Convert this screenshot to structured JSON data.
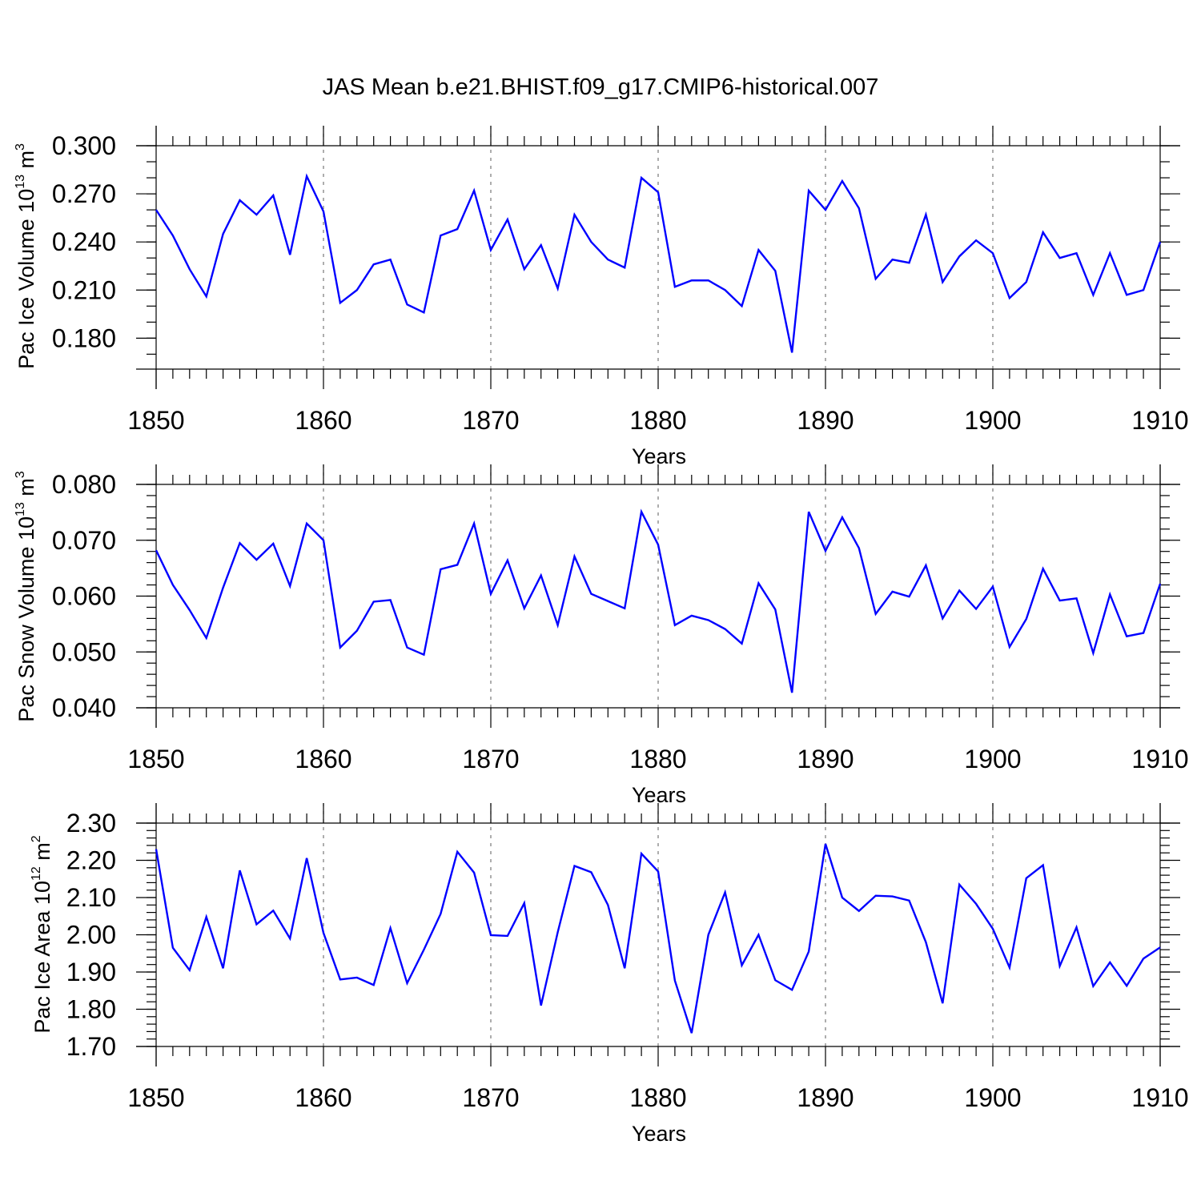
{
  "title": "JAS Mean b.e21.BHIST.f09_g17.CMIP6-historical.007",
  "chart_data": [
    {
      "type": "line",
      "name": "ice-volume",
      "ylabel_main": "Pac Ice Volume 10",
      "ylabel_exp": "13",
      "ylabel_unit": " m",
      "ylabel_unit_exp": "3",
      "xlabel": "Years",
      "xlim": [
        1850,
        1910
      ],
      "ylim": [
        0.16,
        0.3
      ],
      "x_ticks": [
        "1850",
        "1860",
        "1870",
        "1880",
        "1890",
        "1900",
        "1910"
      ],
      "y_ticks": [
        {
          "value": 0.3,
          "label": "0.300"
        },
        {
          "value": 0.27,
          "label": "0.270"
        },
        {
          "value": 0.24,
          "label": "0.240"
        },
        {
          "value": 0.21,
          "label": "0.210"
        },
        {
          "value": 0.18,
          "label": "0.180"
        }
      ],
      "y_minor_step": 0.01,
      "x_start": 1850,
      "values": [
        0.26,
        0.244,
        0.223,
        0.206,
        0.245,
        0.266,
        0.257,
        0.269,
        0.232,
        0.281,
        0.259,
        0.202,
        0.21,
        0.226,
        0.229,
        0.201,
        0.196,
        0.244,
        0.248,
        0.272,
        0.235,
        0.254,
        0.223,
        0.238,
        0.211,
        0.257,
        0.24,
        0.229,
        0.224,
        0.28,
        0.271,
        0.212,
        0.216,
        0.216,
        0.21,
        0.2,
        0.235,
        0.222,
        0.171,
        0.272,
        0.26,
        0.278,
        0.261,
        0.217,
        0.229,
        0.227,
        0.257,
        0.215,
        0.231,
        0.241,
        0.233,
        0.205,
        0.215,
        0.246,
        0.23,
        0.233,
        0.207,
        0.233,
        0.207,
        0.21,
        0.24
      ]
    },
    {
      "type": "line",
      "name": "snow-volume",
      "ylabel_main": "Pac Snow Volume 10",
      "ylabel_exp": "13",
      "ylabel_unit": " m",
      "ylabel_unit_exp": "3",
      "xlabel": "Years",
      "xlim": [
        1850,
        1910
      ],
      "ylim": [
        0.04,
        0.08
      ],
      "x_ticks": [
        "1850",
        "1860",
        "1870",
        "1880",
        "1890",
        "1900",
        "1910"
      ],
      "y_ticks": [
        {
          "value": 0.08,
          "label": "0.080"
        },
        {
          "value": 0.07,
          "label": "0.070"
        },
        {
          "value": 0.06,
          "label": "0.060"
        },
        {
          "value": 0.05,
          "label": "0.050"
        },
        {
          "value": 0.04,
          "label": "0.040"
        }
      ],
      "y_minor_step": 0.002,
      "x_start": 1850,
      "values": [
        0.0682,
        0.062,
        0.0575,
        0.0525,
        0.0615,
        0.0695,
        0.0665,
        0.0694,
        0.0618,
        0.073,
        0.07,
        0.0508,
        0.0538,
        0.059,
        0.0593,
        0.0508,
        0.0495,
        0.0648,
        0.0656,
        0.073,
        0.0604,
        0.0664,
        0.0578,
        0.0637,
        0.0548,
        0.0671,
        0.0604,
        0.0591,
        0.0578,
        0.0751,
        0.0692,
        0.0548,
        0.0565,
        0.0557,
        0.0541,
        0.0515,
        0.0623,
        0.0576,
        0.0427,
        0.0751,
        0.0681,
        0.0741,
        0.0686,
        0.0568,
        0.0608,
        0.0599,
        0.0655,
        0.056,
        0.061,
        0.0577,
        0.0617,
        0.0509,
        0.0559,
        0.0649,
        0.0592,
        0.0596,
        0.0498,
        0.0603,
        0.0528,
        0.0534,
        0.0622
      ]
    },
    {
      "type": "line",
      "name": "ice-area",
      "ylabel_main": "Pac Ice Area 10",
      "ylabel_exp": "12",
      "ylabel_unit": " m",
      "ylabel_unit_exp": "2",
      "xlabel": "Years",
      "xlim": [
        1850,
        1910
      ],
      "ylim": [
        1.7,
        2.3
      ],
      "x_ticks": [
        "1850",
        "1860",
        "1870",
        "1880",
        "1890",
        "1900",
        "1910"
      ],
      "y_ticks": [
        {
          "value": 2.3,
          "label": "2.30"
        },
        {
          "value": 2.2,
          "label": "2.20"
        },
        {
          "value": 2.1,
          "label": "2.10"
        },
        {
          "value": 2.0,
          "label": "2.00"
        },
        {
          "value": 1.9,
          "label": "1.90"
        },
        {
          "value": 1.8,
          "label": "1.80"
        },
        {
          "value": 1.7,
          "label": "1.70"
        }
      ],
      "y_minor_step": 0.02,
      "x_start": 1850,
      "values": [
        2.23,
        1.965,
        1.905,
        2.048,
        1.91,
        2.173,
        2.028,
        2.065,
        1.99,
        2.206,
        2.005,
        1.88,
        1.885,
        1.865,
        2.018,
        1.87,
        1.96,
        2.056,
        2.223,
        2.167,
        1.999,
        1.997,
        2.085,
        1.81,
        2.007,
        2.185,
        2.168,
        2.08,
        1.91,
        2.218,
        2.17,
        1.877,
        1.736,
        2.0,
        2.114,
        1.918,
        2.0,
        1.878,
        1.852,
        1.955,
        2.244,
        2.1,
        2.064,
        2.105,
        2.103,
        2.092,
        1.98,
        1.816,
        2.135,
        2.083,
        2.016,
        1.912,
        2.152,
        2.187,
        1.916,
        2.02,
        1.862,
        1.926,
        1.863,
        1.936,
        1.966
      ]
    }
  ]
}
